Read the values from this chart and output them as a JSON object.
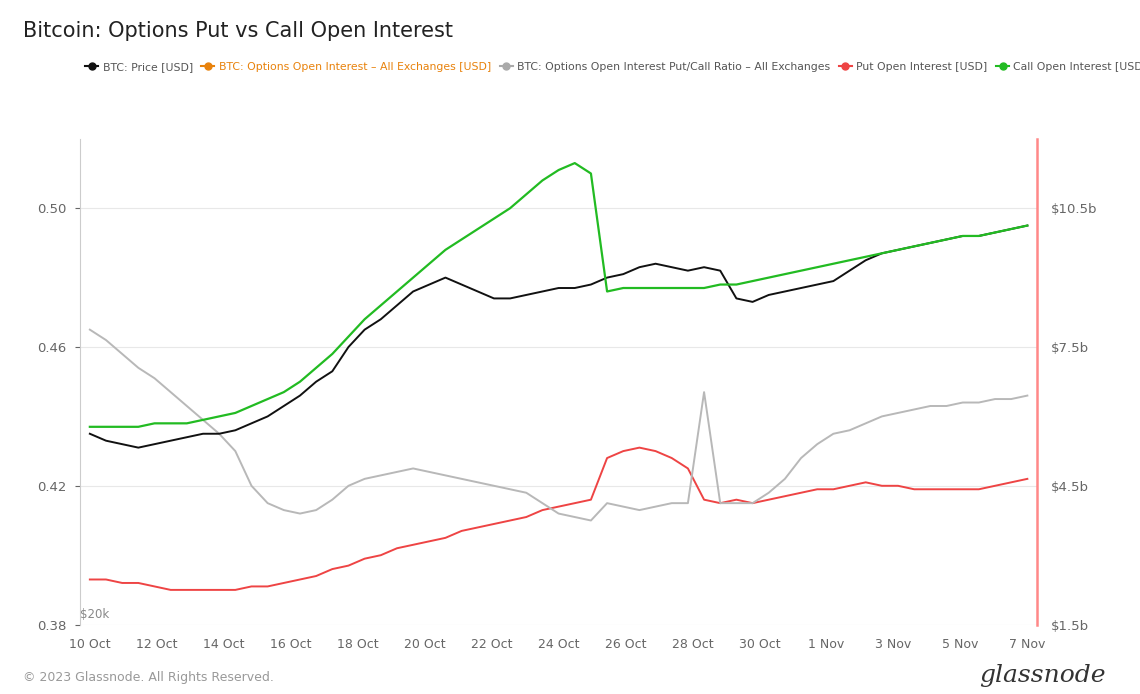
{
  "title": "Bitcoin: Options Put vs Call Open Interest",
  "background_color": "#ffffff",
  "legend_items": [
    {
      "label": "BTC: Price [USD]",
      "color": "#111111"
    },
    {
      "label": "BTC: Options Open Interest – All Exchanges [USD]",
      "color": "#e8820c",
      "strikethrough": true
    },
    {
      "label": "BTC: Options Open Interest Put/Call Ratio – All Exchanges",
      "color": "#aaaaaa"
    },
    {
      "label": "Put Open Interest [USD]",
      "color": "#ee4444"
    },
    {
      "label": "Call Open Interest [USD]",
      "color": "#22bb22"
    }
  ],
  "x_labels": [
    "10 Oct",
    "12 Oct",
    "14 Oct",
    "16 Oct",
    "18 Oct",
    "20 Oct",
    "22 Oct",
    "24 Oct",
    "26 Oct",
    "28 Oct",
    "30 Oct",
    "1 Nov",
    "3 Nov",
    "5 Nov",
    "7 Nov"
  ],
  "left_ylim": [
    0.38,
    0.52
  ],
  "left_yticks": [
    0.38,
    0.42,
    0.46,
    0.5
  ],
  "right_yticks_labels": [
    "$1.5b",
    "$4.5b",
    "$7.5b",
    "$10.5b"
  ],
  "grid_color": "#e8e8e8",
  "footer_left": "© 2023 Glassnode. All Rights Reserved.",
  "footer_right": "glassnode",
  "series_black": [
    0.435,
    0.433,
    0.432,
    0.431,
    0.432,
    0.433,
    0.434,
    0.435,
    0.435,
    0.436,
    0.438,
    0.44,
    0.443,
    0.446,
    0.45,
    0.453,
    0.46,
    0.465,
    0.468,
    0.472,
    0.476,
    0.478,
    0.48,
    0.478,
    0.476,
    0.474,
    0.474,
    0.475,
    0.476,
    0.477,
    0.477,
    0.478,
    0.48,
    0.481,
    0.483,
    0.484,
    0.483,
    0.482,
    0.483,
    0.482,
    0.474,
    0.473,
    0.475,
    0.476,
    0.477,
    0.478,
    0.479,
    0.482,
    0.485,
    0.487,
    0.488,
    0.489,
    0.49,
    0.491,
    0.492,
    0.492,
    0.493,
    0.494,
    0.495
  ],
  "series_gray": [
    0.465,
    0.462,
    0.458,
    0.454,
    0.451,
    0.447,
    0.443,
    0.439,
    0.435,
    0.43,
    0.42,
    0.415,
    0.413,
    0.412,
    0.413,
    0.416,
    0.42,
    0.422,
    0.423,
    0.424,
    0.425,
    0.424,
    0.423,
    0.422,
    0.421,
    0.42,
    0.419,
    0.418,
    0.415,
    0.412,
    0.411,
    0.41,
    0.415,
    0.414,
    0.413,
    0.414,
    0.415,
    0.415,
    0.447,
    0.415,
    0.415,
    0.415,
    0.418,
    0.422,
    0.428,
    0.432,
    0.435,
    0.436,
    0.438,
    0.44,
    0.441,
    0.442,
    0.443,
    0.443,
    0.444,
    0.444,
    0.445,
    0.445,
    0.446
  ],
  "series_red": [
    0.393,
    0.393,
    0.392,
    0.392,
    0.391,
    0.39,
    0.39,
    0.39,
    0.39,
    0.39,
    0.391,
    0.391,
    0.392,
    0.393,
    0.394,
    0.396,
    0.397,
    0.399,
    0.4,
    0.402,
    0.403,
    0.404,
    0.405,
    0.407,
    0.408,
    0.409,
    0.41,
    0.411,
    0.413,
    0.414,
    0.415,
    0.416,
    0.428,
    0.43,
    0.431,
    0.43,
    0.428,
    0.425,
    0.416,
    0.415,
    0.416,
    0.415,
    0.416,
    0.417,
    0.418,
    0.419,
    0.419,
    0.42,
    0.421,
    0.42,
    0.42,
    0.419,
    0.419,
    0.419,
    0.419,
    0.419,
    0.42,
    0.421,
    0.422
  ],
  "series_green": [
    0.437,
    0.437,
    0.437,
    0.437,
    0.438,
    0.438,
    0.438,
    0.439,
    0.44,
    0.441,
    0.443,
    0.445,
    0.447,
    0.45,
    0.454,
    0.458,
    0.463,
    0.468,
    0.472,
    0.476,
    0.48,
    0.484,
    0.488,
    0.491,
    0.494,
    0.497,
    0.5,
    0.504,
    0.508,
    0.511,
    0.513,
    0.51,
    0.476,
    0.477,
    0.477,
    0.477,
    0.477,
    0.477,
    0.477,
    0.478,
    0.478,
    0.479,
    0.48,
    0.481,
    0.482,
    0.483,
    0.484,
    0.485,
    0.486,
    0.487,
    0.488,
    0.489,
    0.49,
    0.491,
    0.492,
    0.492,
    0.493,
    0.494,
    0.495
  ]
}
